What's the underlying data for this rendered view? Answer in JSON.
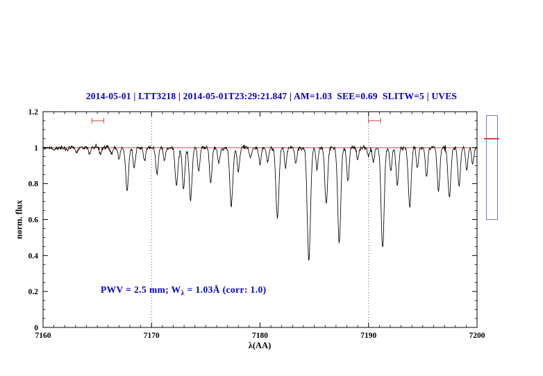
{
  "header": {
    "title": "2014-05-01 | LTT3218 | 2014-05-01T23:29:21.847 | AM=1.03  SEE=0.69  SLITW=5 | UVES",
    "title_color": "#0000cc"
  },
  "annotation": {
    "prefix": "PWV = 2.5 mm; W",
    "sub": "λ",
    "suffix": " = 1.03Å (corr: 1.0)",
    "color": "#0000cc"
  },
  "indicator": {
    "border_color": "#7777cc",
    "line_color": "#cc4444"
  },
  "chart_data": {
    "type": "line",
    "title": "2014-05-01 | LTT3218 | 2014-05-01T23:29:21.847 | AM=1.03  SEE=0.69  SLITW=5 | UVES",
    "xlabel": "λ(AA)",
    "ylabel": "norm. flux",
    "xlim": [
      7160,
      7200
    ],
    "ylim": [
      0,
      1.2
    ],
    "x_ticks": [
      7160,
      7170,
      7180,
      7190,
      7200
    ],
    "x_tick_labels": [
      "7160",
      "7170",
      "7180",
      "7190",
      "7200"
    ],
    "y_ticks": [
      0,
      0.2,
      0.4,
      0.6,
      0.8,
      1,
      1.2
    ],
    "y_tick_labels": [
      "0",
      "0.2",
      "0.4",
      "0.6",
      "0.8",
      "1",
      "1.2"
    ],
    "x_minor_step": 1,
    "y_minor_step": 0.05,
    "grid": false,
    "legend": "none",
    "guides_x": [
      7170,
      7190
    ],
    "continuum_line": {
      "y": 1.0,
      "color": "#cc4444"
    },
    "markers": [
      {
        "x_center": 7165.05,
        "half_width": 0.55,
        "y": 1.15
      },
      {
        "x_center": 7190.55,
        "half_width": 0.55,
        "y": 1.15
      }
    ],
    "marker_color": "#d45555",
    "continuum": 1.0,
    "noise_sigma": 0.006,
    "sample_step": 0.04,
    "absorption_lines": [
      [
        7161.0,
        0.015,
        0.1
      ],
      [
        7162.2,
        0.02,
        0.1
      ],
      [
        7163.1,
        0.025,
        0.1
      ],
      [
        7164.3,
        0.03,
        0.1
      ],
      [
        7165.3,
        0.03,
        0.1
      ],
      [
        7166.3,
        0.04,
        0.1
      ],
      [
        7167.0,
        0.06,
        0.1
      ],
      [
        7167.75,
        0.24,
        0.13
      ],
      [
        7168.4,
        0.11,
        0.11
      ],
      [
        7169.35,
        0.07,
        0.1
      ],
      [
        7170.5,
        0.14,
        0.12
      ],
      [
        7171.2,
        0.07,
        0.1
      ],
      [
        7172.3,
        0.21,
        0.13
      ],
      [
        7172.95,
        0.23,
        0.12
      ],
      [
        7173.6,
        0.29,
        0.13
      ],
      [
        7174.35,
        0.13,
        0.11
      ],
      [
        7175.45,
        0.19,
        0.12
      ],
      [
        7176.2,
        0.09,
        0.1
      ],
      [
        7177.35,
        0.32,
        0.14
      ],
      [
        7178.0,
        0.13,
        0.11
      ],
      [
        7179.1,
        0.06,
        0.1
      ],
      [
        7180.0,
        0.09,
        0.1
      ],
      [
        7180.7,
        0.08,
        0.1
      ],
      [
        7181.6,
        0.39,
        0.14
      ],
      [
        7182.35,
        0.11,
        0.1
      ],
      [
        7183.3,
        0.09,
        0.1
      ],
      [
        7184.5,
        0.62,
        0.15
      ],
      [
        7185.25,
        0.12,
        0.1
      ],
      [
        7186.1,
        0.31,
        0.13
      ],
      [
        7187.3,
        0.53,
        0.14
      ],
      [
        7188.1,
        0.19,
        0.11
      ],
      [
        7189.0,
        0.07,
        0.1
      ],
      [
        7190.0,
        0.05,
        0.1
      ],
      [
        7190.45,
        0.08,
        0.1
      ],
      [
        7191.3,
        0.56,
        0.14
      ],
      [
        7192.05,
        0.13,
        0.1
      ],
      [
        7192.65,
        0.21,
        0.12
      ],
      [
        7193.8,
        0.33,
        0.13
      ],
      [
        7194.5,
        0.11,
        0.1
      ],
      [
        7195.35,
        0.16,
        0.11
      ],
      [
        7196.45,
        0.24,
        0.12
      ],
      [
        7197.45,
        0.28,
        0.13
      ],
      [
        7198.35,
        0.21,
        0.12
      ],
      [
        7199.05,
        0.13,
        0.1
      ],
      [
        7199.6,
        0.09,
        0.1
      ]
    ]
  }
}
